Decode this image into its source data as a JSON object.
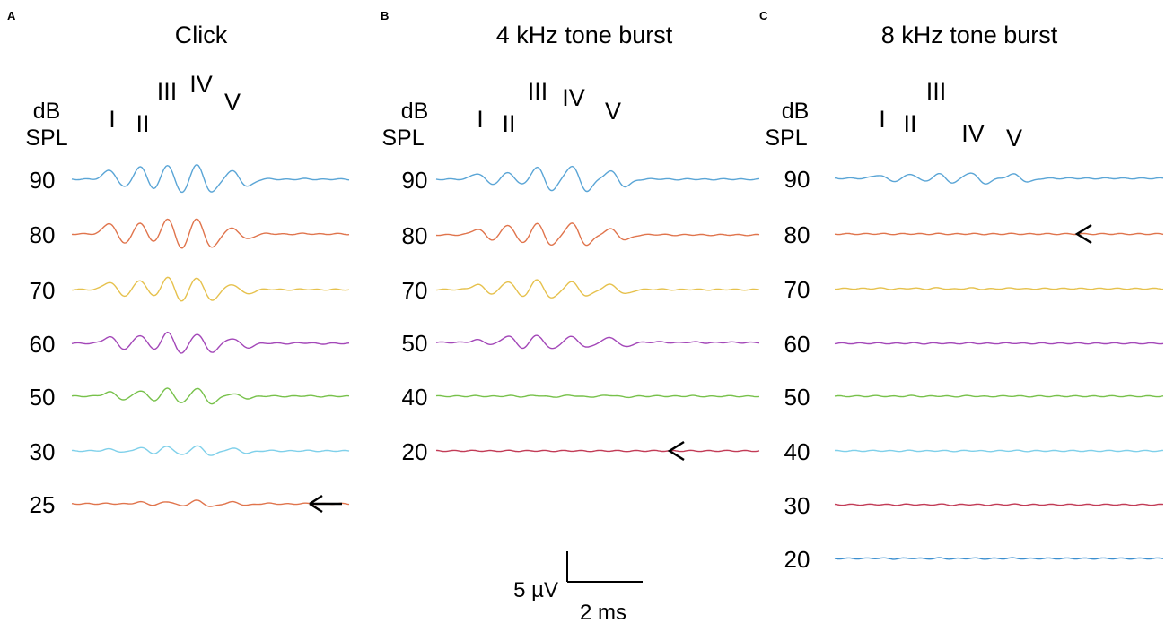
{
  "chart_data": [
    {
      "type": "line",
      "panel": "A",
      "title": "Click",
      "ylabel": [
        "dB",
        "SPL"
      ],
      "wave_labels": [
        "I",
        "II",
        "III",
        "IV",
        "V"
      ],
      "traces": [
        {
          "level": "90",
          "color": "#5aa5d6",
          "amp": [
            11,
            15,
            19,
            18,
            10,
            0.4,
            0.5,
            0.35
          ]
        },
        {
          "level": "80",
          "color": "#e0744c",
          "amp": [
            13,
            13,
            20,
            19,
            7,
            0.45,
            0.45,
            0.3
          ]
        },
        {
          "level": "70",
          "color": "#e6c14d",
          "amp": [
            9,
            11,
            16,
            15,
            6,
            0.4,
            0.4,
            0.3
          ]
        },
        {
          "level": "60",
          "color": "#a347b8",
          "amp": [
            8,
            10,
            14,
            12,
            6,
            0.3,
            0.7,
            0.3
          ]
        },
        {
          "level": "50",
          "color": "#77c14a",
          "amp": [
            5,
            7,
            10,
            10,
            3,
            0.3,
            0.5,
            0.3
          ]
        },
        {
          "level": "30",
          "color": "#7fd0ea",
          "amp": [
            2,
            4,
            6,
            6,
            3,
            0.3,
            0.3,
            0.2
          ]
        },
        {
          "level": "25",
          "color": "#e0744c",
          "amp": [
            0.3,
            2,
            3,
            4,
            2,
            0.4,
            0.3,
            0.2
          ],
          "threshold_arrow": true
        }
      ]
    },
    {
      "type": "line",
      "panel": "B",
      "title": "4 kHz tone burst",
      "ylabel": [
        "dB",
        "SPL"
      ],
      "wave_labels": [
        "I",
        "II",
        "III",
        "IV",
        "V"
      ],
      "traces": [
        {
          "level": "90",
          "color": "#5aa5d6",
          "amp": [
            7,
            8,
            15,
            16,
            10,
            0.4,
            0.3,
            0.2
          ]
        },
        {
          "level": "80",
          "color": "#e0744c",
          "amp": [
            7,
            12,
            14,
            14,
            7,
            0.4,
            0.3,
            0.2
          ]
        },
        {
          "level": "70",
          "color": "#e6c14d",
          "amp": [
            6,
            10,
            12,
            9,
            6,
            0.4,
            0.3,
            0.2
          ]
        },
        {
          "level": "50",
          "color": "#a347b8",
          "amp": [
            3,
            8,
            9,
            7,
            6,
            0.6,
            0.6,
            0.3
          ]
        },
        {
          "level": "40",
          "color": "#77c14a",
          "amp": [
            0.3,
            0.5,
            1,
            1,
            1.2,
            0.2,
            0.4,
            0.2
          ]
        },
        {
          "level": "20",
          "color": "#c23b56",
          "amp": [
            0.2,
            0.2,
            0.2,
            0.2,
            0.2,
            0.1,
            0.1,
            0.1
          ],
          "threshold_arrow": true
        }
      ],
      "scale_bar": {
        "y_label": "5 µV",
        "x_label": "2 ms"
      }
    },
    {
      "type": "line",
      "panel": "C",
      "title": "8 kHz tone burst",
      "ylabel": [
        "dB",
        "SPL"
      ],
      "wave_labels": [
        "I",
        "II",
        "III",
        "IV",
        "V"
      ],
      "traces": [
        {
          "level": "90",
          "color": "#5aa5d6",
          "amp": [
            4,
            5,
            6,
            7,
            5,
            0.2,
            0.2,
            0.1
          ]
        },
        {
          "level": "80",
          "color": "#e0744c",
          "amp": [
            0.2,
            0.2,
            0.2,
            0.2,
            0.2,
            0.1,
            0.1,
            0.1
          ],
          "threshold_arrow": true
        },
        {
          "level": "70",
          "color": "#e6c14d",
          "amp": [
            0.5,
            0.5,
            0.8,
            0.6,
            0.5,
            0.1,
            0.1,
            0.1
          ]
        },
        {
          "level": "60",
          "color": "#a347b8",
          "amp": [
            0.2,
            0.3,
            0.3,
            0.3,
            0.3,
            0.1,
            0.1,
            0.1
          ]
        },
        {
          "level": "50",
          "color": "#77c14a",
          "amp": [
            0.3,
            0.4,
            0.4,
            0.4,
            0.3,
            0.1,
            0.1,
            0.1
          ]
        },
        {
          "level": "40",
          "color": "#7fd0ea",
          "amp": [
            0.2,
            0.3,
            0.3,
            0.3,
            0.3,
            0.1,
            0.1,
            0.1
          ]
        },
        {
          "level": "30",
          "color": "#c23b56",
          "amp": [
            0.3,
            0.3,
            0.4,
            0.3,
            0.3,
            0.1,
            0.1,
            0.1
          ]
        },
        {
          "level": "20",
          "color": "#3a8ecf",
          "amp": [
            0.4,
            0.4,
            0.4,
            0.3,
            0.3,
            0.1,
            0.1,
            0.1
          ]
        }
      ]
    }
  ]
}
